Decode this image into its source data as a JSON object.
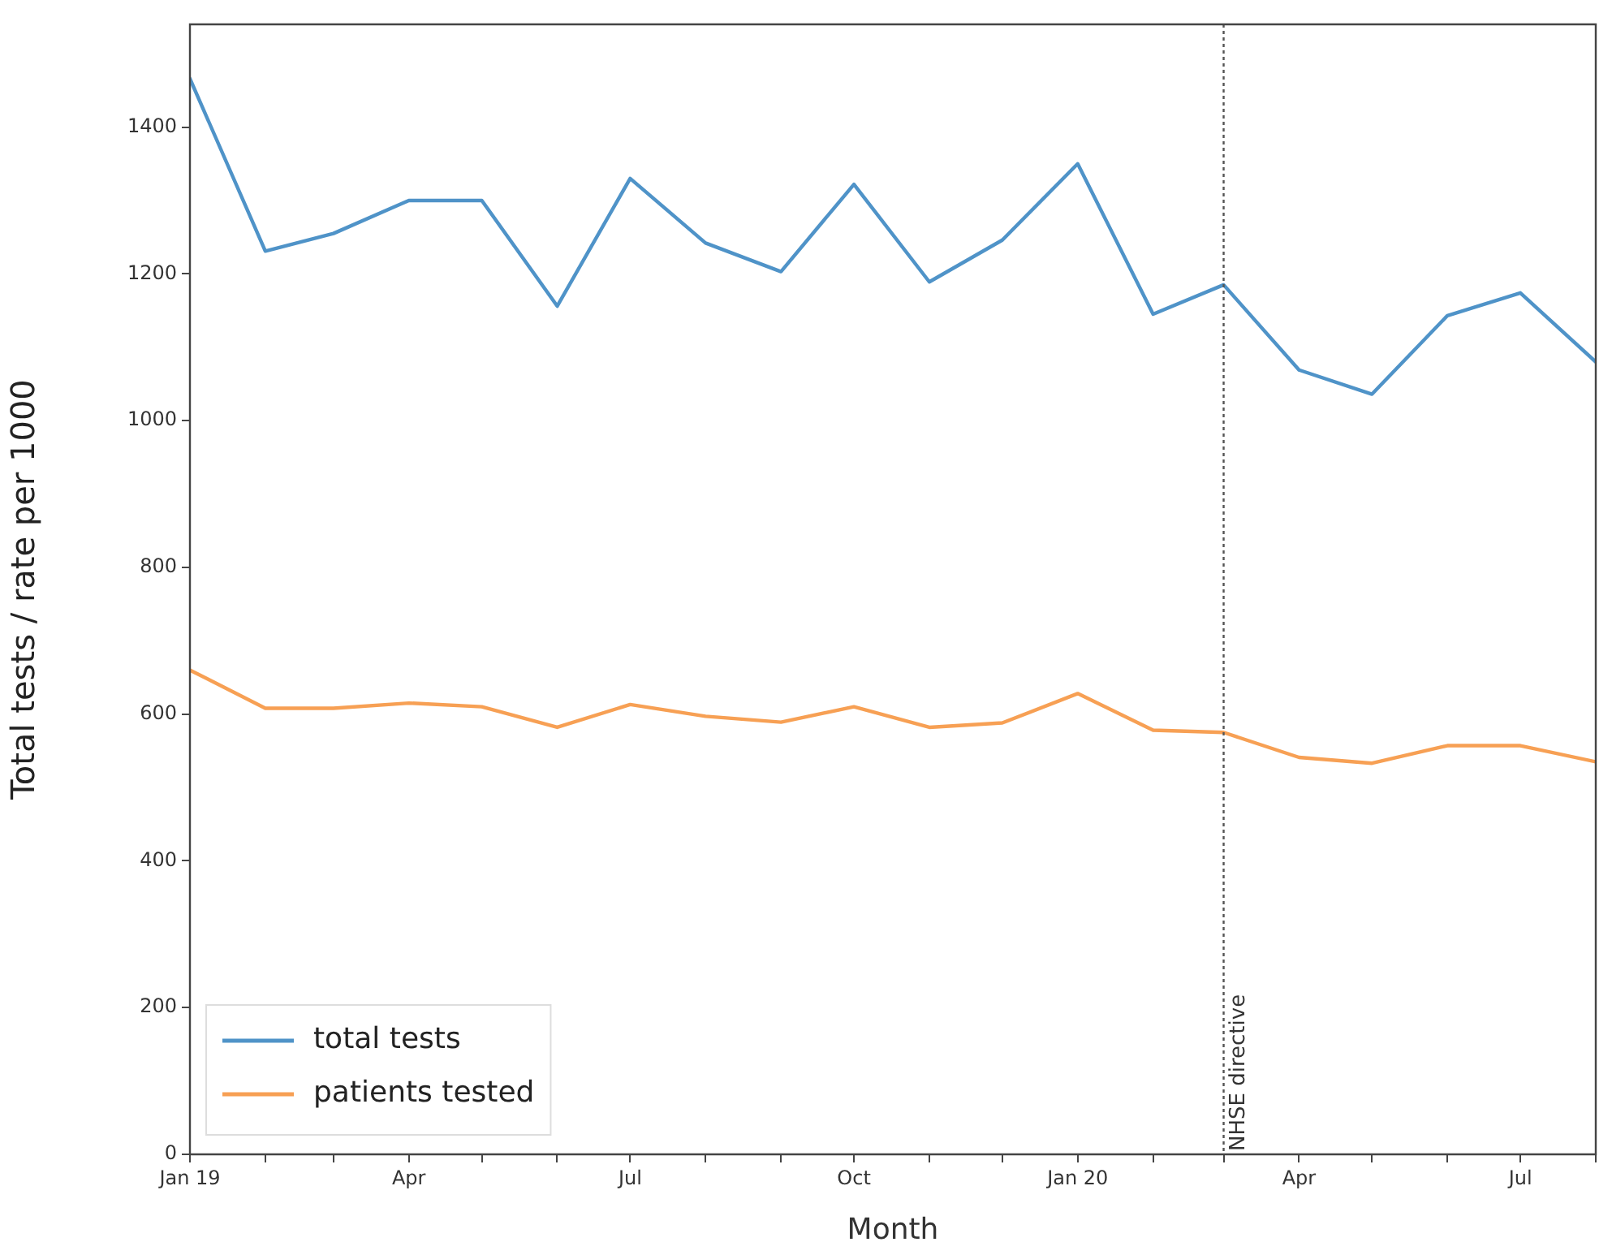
{
  "chart_data": {
    "type": "line",
    "xlabel": "Month",
    "ylabel": "Total tests / rate per 1000",
    "x": [
      "2019-01",
      "2019-02",
      "2019-03",
      "2019-04",
      "2019-05",
      "2019-06",
      "2019-07",
      "2019-08",
      "2019-09",
      "2019-10",
      "2019-11",
      "2019-12",
      "2020-01",
      "2020-02",
      "2020-03",
      "2020-04",
      "2020-05",
      "2020-06",
      "2020-07",
      "2020-08"
    ],
    "series": [
      {
        "name": "total tests",
        "color": "#4f93c8",
        "values": [
          1466,
          1231,
          1255,
          1300,
          1300,
          1156,
          1330,
          1242,
          1203,
          1322,
          1189,
          1246,
          1350,
          1145,
          1185,
          1069,
          1036,
          1143,
          1174,
          1080
        ]
      },
      {
        "name": "patients tested",
        "color": "#f7a054",
        "values": [
          660,
          608,
          608,
          615,
          610,
          582,
          613,
          597,
          589,
          610,
          582,
          588,
          628,
          578,
          575,
          541,
          533,
          557,
          557,
          535
        ]
      }
    ],
    "xlim": [
      "2019-01",
      "2020-08"
    ],
    "xticks": [
      {
        "value": "2019-01",
        "label": "Jan 19"
      },
      {
        "value": "2019-02",
        "label": null
      },
      {
        "value": "2019-03",
        "label": null
      },
      {
        "value": "2019-04",
        "label": "Apr"
      },
      {
        "value": "2019-05",
        "label": null
      },
      {
        "value": "2019-06",
        "label": null
      },
      {
        "value": "2019-07",
        "label": "Jul"
      },
      {
        "value": "2019-08",
        "label": null
      },
      {
        "value": "2019-09",
        "label": null
      },
      {
        "value": "2019-10",
        "label": "Oct"
      },
      {
        "value": "2019-11",
        "label": null
      },
      {
        "value": "2019-12",
        "label": null
      },
      {
        "value": "2020-01",
        "label": "Jan 20"
      },
      {
        "value": "2020-02",
        "label": null
      },
      {
        "value": "2020-03",
        "label": null
      },
      {
        "value": "2020-04",
        "label": "Apr"
      },
      {
        "value": "2020-05",
        "label": null
      },
      {
        "value": "2020-06",
        "label": null
      },
      {
        "value": "2020-07",
        "label": "Jul"
      },
      {
        "value": "2020-08",
        "label": null
      }
    ],
    "ylim": [
      0,
      1540
    ],
    "yticks": [
      0,
      200,
      400,
      600,
      800,
      1000,
      1200,
      1400
    ],
    "ref_lines": [
      {
        "axis": "x",
        "value": "2020-03",
        "label": "NHSE directive",
        "color": "#555555",
        "line_style": "dotted"
      }
    ],
    "grid": false,
    "legend": "bottom left",
    "marker": "none",
    "line_style": "solid"
  }
}
